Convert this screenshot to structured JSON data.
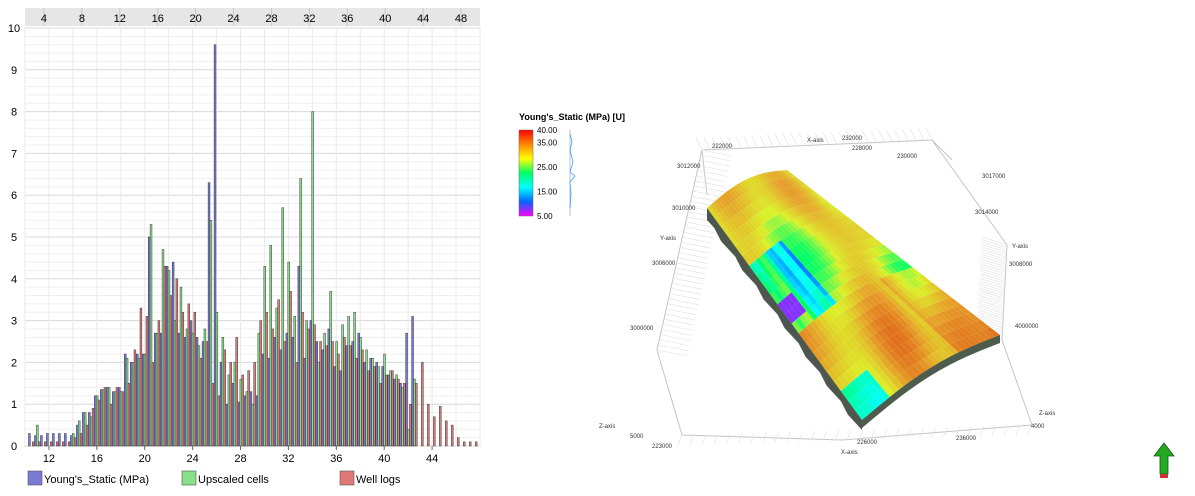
{
  "chart_data": [
    {
      "type": "bar",
      "top_axis_ticks": [
        "4",
        "8",
        "12",
        "16",
        "20",
        "24",
        "28",
        "32",
        "36",
        "40",
        "44",
        "48"
      ],
      "bottom_axis_ticks": [
        "12",
        "16",
        "20",
        "24",
        "28",
        "32",
        "36",
        "40",
        "44"
      ],
      "y_ticks": [
        "0",
        "1",
        "2",
        "3",
        "4",
        "5",
        "6",
        "7",
        "8",
        "9",
        "10"
      ],
      "ylim": [
        0,
        10
      ],
      "xlim": [
        10,
        48
      ],
      "grid": true,
      "legend_position": "bottom",
      "bin_width": 0.5,
      "x": [
        10.5,
        11,
        11.5,
        12,
        12.5,
        13,
        13.5,
        14,
        14.5,
        15,
        15.5,
        16,
        16.5,
        17,
        17.5,
        18,
        18.5,
        19,
        19.5,
        20,
        20.5,
        21,
        21.5,
        22,
        22.5,
        23,
        23.5,
        24,
        24.5,
        25,
        25.5,
        26,
        26.5,
        27,
        27.5,
        28,
        28.5,
        29,
        29.5,
        30,
        30.5,
        31,
        31.5,
        32,
        32.5,
        33,
        33.5,
        34,
        34.5,
        35,
        35.5,
        36,
        36.5,
        37,
        37.5,
        38,
        38.5,
        39,
        39.5,
        40,
        40.5,
        41,
        41.5,
        42,
        42.5,
        43,
        43.5,
        44,
        44.5,
        45,
        45.5,
        46,
        46.5,
        47,
        47.5
      ],
      "series": [
        {
          "name": "Young's_Static (MPa)",
          "color": "#7a7ad4",
          "values": [
            0.3,
            0.25,
            0.25,
            0.3,
            0.3,
            0.3,
            0.3,
            0.25,
            0.5,
            0.8,
            0.8,
            1.2,
            1.35,
            1.4,
            1.3,
            1.4,
            2.2,
            2.0,
            2.2,
            2.2,
            5.0,
            2.7,
            2.7,
            4.3,
            4.4,
            2.7,
            2.6,
            3.0,
            2.6,
            2.5,
            6.3,
            9.6,
            2.0,
            1.0,
            1.5,
            1.05,
            1.2,
            1.3,
            1.2,
            2.2,
            2.1,
            2.6,
            2.3,
            2.7,
            2.6,
            4.3,
            2.1,
            3.0,
            2.5,
            2.3,
            2.8,
            1.9,
            1.8,
            2.4,
            2.5,
            2.7,
            2.0,
            2.1,
            2.0,
            1.9,
            1.7,
            1.6,
            1.5,
            2.7,
            3.1,
            0,
            0,
            0,
            0,
            0,
            0,
            0,
            0,
            0,
            0
          ]
        },
        {
          "name": "Upscaled cells",
          "color": "#88e088",
          "values": [
            0.0,
            0.5,
            0.0,
            0.0,
            0.0,
            0.0,
            0.0,
            0.3,
            0.6,
            0.8,
            0.7,
            1.2,
            1.35,
            1.4,
            1.3,
            1.3,
            2.1,
            2.0,
            2.1,
            2.2,
            5.3,
            2.7,
            4.7,
            4.2,
            3.0,
            3.8,
            2.8,
            2.7,
            2.4,
            2.8,
            5.4,
            3.2,
            2.6,
            1.7,
            2.0,
            1.6,
            1.3,
            1.0,
            2.7,
            4.3,
            4.8,
            3.3,
            5.7,
            4.4,
            3.1,
            6.4,
            3.0,
            8.0,
            2.0,
            2.7,
            3.7,
            2.5,
            2.9,
            3.1,
            3.2,
            2.6,
            2.3,
            2.1,
            1.9,
            2.2,
            1.8,
            1.7,
            1.4,
            0.4,
            1.6,
            0,
            0,
            0,
            0,
            0,
            0,
            0,
            0,
            0,
            0
          ]
        },
        {
          "name": "Well logs",
          "color": "#e07878",
          "values": [
            0.1,
            0.1,
            0.1,
            0.1,
            0.1,
            0.1,
            0.1,
            0.2,
            0.3,
            0.5,
            0.9,
            1.1,
            1.4,
            1.0,
            1.4,
            1.3,
            1.5,
            2.3,
            3.3,
            3.1,
            2.0,
            3.0,
            4.3,
            3.6,
            4.0,
            3.2,
            3.4,
            3.2,
            2.1,
            2.5,
            1.5,
            1.2,
            2.3,
            2.0,
            2.6,
            1.7,
            1.8,
            2.0,
            3.0,
            3.2,
            2.8,
            3.5,
            2.5,
            3.7,
            2.0,
            3.2,
            2.8,
            2.9,
            2.5,
            2.4,
            2.5,
            2.2,
            2.6,
            2.4,
            2.1,
            2.3,
            1.8,
            1.9,
            1.5,
            1.7,
            1.8,
            1.6,
            1.5,
            1.0,
            1.5,
            2.0,
            1.0,
            0.7,
            0.95,
            0.6,
            0.5,
            0.2,
            0.1,
            0.1,
            0.1
          ]
        }
      ]
    },
    {
      "type": "heatmap",
      "colorbar": {
        "title": "Young's_Static (MPa) [U]",
        "tick_labels": [
          "40.00",
          "35.00",
          "25.00",
          "15.00",
          "5.00"
        ],
        "tick_values": [
          40,
          35,
          25,
          15,
          5
        ],
        "range": [
          5,
          40
        ],
        "colors": [
          "#ff0000",
          "#ff8800",
          "#ffff00",
          "#00ff66",
          "#00ffff",
          "#0066ff",
          "#ff00ff"
        ]
      },
      "axis_labels": {
        "top": [
          "222000",
          "X-axis",
          "228000",
          "230000",
          "232000"
        ],
        "left": [
          "3012000",
          "3010000",
          "Y-axis",
          "3006000",
          "3000000",
          "Z-axis",
          "5000"
        ],
        "right": [
          "3017000",
          "3014000",
          "Y-axis",
          "3008000",
          "4000000",
          "Z-axis",
          "4000"
        ],
        "bottom": [
          "223000",
          "226000",
          "X-axis",
          "236000"
        ]
      },
      "north_arrow_icon": "north-arrow-icon"
    }
  ]
}
